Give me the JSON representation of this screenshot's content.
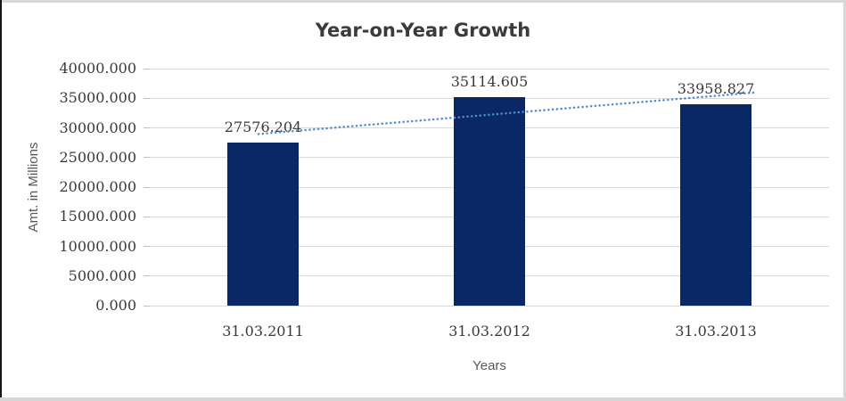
{
  "chart_data": {
    "type": "bar",
    "title": "Year-on-Year Growth",
    "xlabel": "Years",
    "ylabel": "Amt. in Millions",
    "categories": [
      "31.03.2011",
      "31.03.2012",
      "31.03.2013"
    ],
    "values": [
      27576.204,
      35114.605,
      33958.827
    ],
    "data_labels": [
      "27576.204",
      "35114.605",
      "33958.827"
    ],
    "ylim": [
      0,
      40000
    ],
    "ytick_step": 5000,
    "ytick_labels": [
      "0.000",
      "5000.000",
      "10000.000",
      "15000.000",
      "20000.000",
      "25000.000",
      "30000.000",
      "35000.000",
      "40000.000"
    ],
    "grid": true,
    "legend": "none",
    "bar_color": "#0a2866",
    "gridline_color": "#d9d9d9",
    "text_color": "#3a3a3a",
    "trendline": {
      "type": "linear",
      "style": "dotted",
      "color": "#4e8bd0",
      "start_value": 29025.234,
      "end_value": 35407.857
    }
  }
}
